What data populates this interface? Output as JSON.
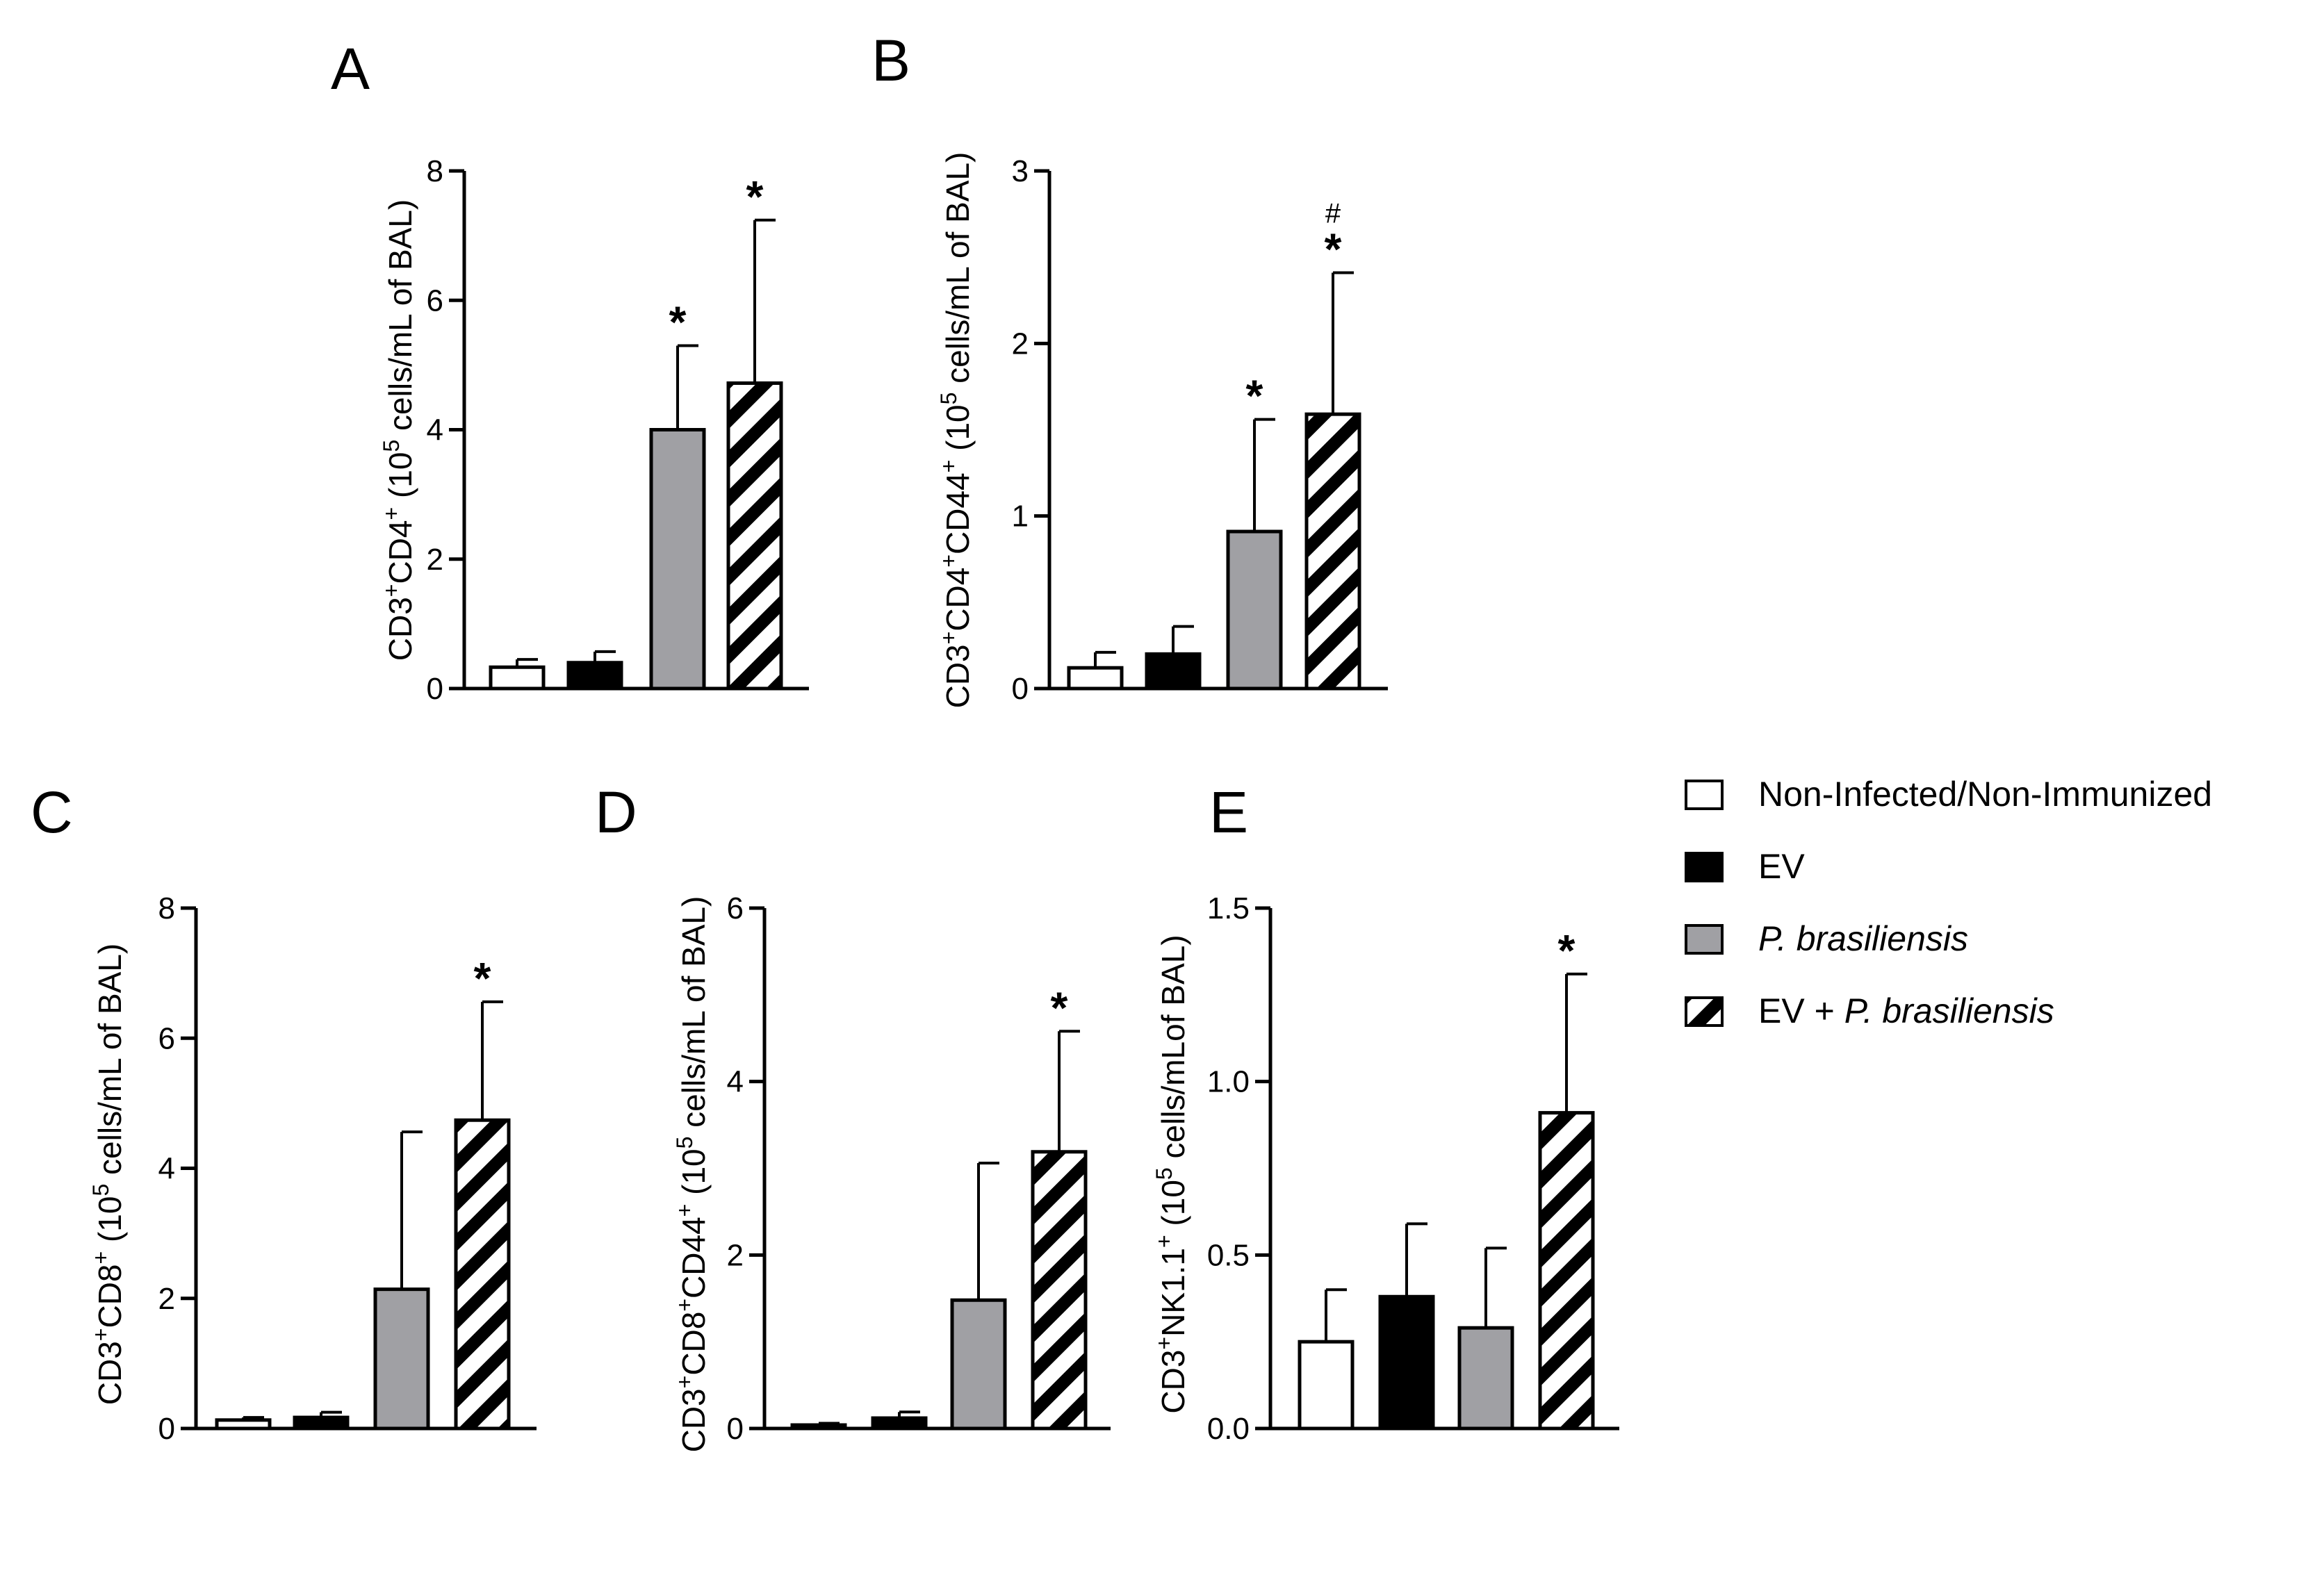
{
  "legend": [
    {
      "label": "Non-Infected/Non-Immunized",
      "style": "white"
    },
    {
      "label": "EV",
      "style": "black"
    },
    {
      "label": "P. brasiliensis",
      "style": "gray",
      "italic": true
    },
    {
      "label_prefix": "EV + ",
      "label_italic": "P. brasiliensis",
      "style": "hatch"
    }
  ],
  "colors": {
    "white": "#ffffff",
    "black": "#000000",
    "gray": "#a0a0a4",
    "stroke": "#000000"
  },
  "chart_data": [
    {
      "panel": "A",
      "type": "bar",
      "ylabel": {
        "main": "CD3",
        "sup1": "+",
        "mid": "CD4",
        "sup2": "+",
        "mid2": "",
        "sup3": "",
        "unit_pre": " (10",
        "unit_sup": "5",
        "unit_post": " cells/mL of BAL)"
      },
      "ylim": [
        0,
        8
      ],
      "yticks": [
        "0",
        "2",
        "4",
        "6",
        "8"
      ],
      "ytick_values": [
        0,
        2,
        4,
        6,
        8
      ],
      "categories": [
        "Non-Infected/Non-Immunized",
        "EV",
        "P. brasiliensis",
        "EV + P. brasiliensis"
      ],
      "values": [
        0.33,
        0.4,
        4.0,
        4.72
      ],
      "errors": [
        0.12,
        0.17,
        1.3,
        2.52
      ],
      "annotations": [
        [],
        [],
        [
          "*"
        ],
        [
          "*"
        ]
      ]
    },
    {
      "panel": "B",
      "type": "bar",
      "ylabel": {
        "main": "CD3",
        "sup1": "+",
        "mid": "CD4",
        "sup2": "+",
        "mid2": "CD44",
        "sup3": "+",
        "unit_pre": " (10",
        "unit_sup": "5",
        "unit_post": " cells/mL of BAL)"
      },
      "ylim": [
        0,
        3
      ],
      "yticks": [
        "0",
        "1",
        "2",
        "3"
      ],
      "ytick_values": [
        0,
        1,
        2,
        3
      ],
      "categories": [
        "Non-Infected/Non-Immunized",
        "EV",
        "P. brasiliensis",
        "EV + P. brasiliensis"
      ],
      "values": [
        0.12,
        0.2,
        0.91,
        1.59
      ],
      "errors": [
        0.09,
        0.16,
        0.65,
        0.82
      ],
      "annotations": [
        [],
        [],
        [
          "*"
        ],
        [
          "*",
          "#"
        ]
      ]
    },
    {
      "panel": "C",
      "type": "bar",
      "ylabel": {
        "main": "CD3",
        "sup1": "+",
        "mid": "CD8",
        "sup2": "+",
        "mid2": "",
        "sup3": "",
        "unit_pre": " (10",
        "unit_sup": "5",
        "unit_post": " cells/mL of BAL)"
      },
      "ylim": [
        0,
        8
      ],
      "yticks": [
        "0",
        "2",
        "4",
        "6",
        "8"
      ],
      "ytick_values": [
        0,
        2,
        4,
        6,
        8
      ],
      "categories": [
        "Non-Infected/Non-Immunized",
        "EV",
        "P. brasiliensis",
        "EV + P. brasiliensis"
      ],
      "values": [
        0.13,
        0.17,
        2.14,
        4.74
      ],
      "errors": [
        0.04,
        0.08,
        2.42,
        1.82
      ],
      "annotations": [
        [],
        [],
        [],
        [
          "*"
        ]
      ]
    },
    {
      "panel": "D",
      "type": "bar",
      "ylabel": {
        "main": "CD3",
        "sup1": "+",
        "mid": "CD8",
        "sup2": "+",
        "mid2": "CD44",
        "sup3": "+",
        "unit_pre": " (10",
        "unit_sup": "5",
        "unit_post": " cells/mL of BAL)"
      },
      "ylim": [
        0,
        6
      ],
      "yticks": [
        "0",
        "2",
        "4",
        "6"
      ],
      "ytick_values": [
        0,
        2,
        4,
        6
      ],
      "categories": [
        "Non-Infected/Non-Immunized",
        "EV",
        "P. brasiliensis",
        "EV + P. brasiliensis"
      ],
      "values": [
        0.04,
        0.12,
        1.48,
        3.19
      ],
      "errors": [
        0.02,
        0.07,
        1.58,
        1.39
      ],
      "annotations": [
        [],
        [],
        [],
        [
          "*"
        ]
      ]
    },
    {
      "panel": "E",
      "type": "bar",
      "ylabel": {
        "main": "CD3",
        "sup1": "+",
        "mid": "NK1.1",
        "sup2": "+",
        "mid2": "",
        "sup3": "",
        "unit_pre": " (10",
        "unit_sup": "5",
        "unit_post": " cells/mLof BAL)"
      },
      "ylim": [
        0,
        1.5
      ],
      "yticks": [
        "0.0",
        "0.5",
        "1.0",
        "1.5"
      ],
      "ytick_values": [
        0,
        0.5,
        1.0,
        1.5
      ],
      "categories": [
        "Non-Infected/Non-Immunized",
        "EV",
        "P. brasiliensis",
        "EV + P. brasiliensis"
      ],
      "values": [
        0.25,
        0.38,
        0.29,
        0.91
      ],
      "errors": [
        0.15,
        0.21,
        0.23,
        0.4
      ],
      "annotations": [
        [],
        [],
        [],
        [
          "*"
        ]
      ]
    }
  ]
}
